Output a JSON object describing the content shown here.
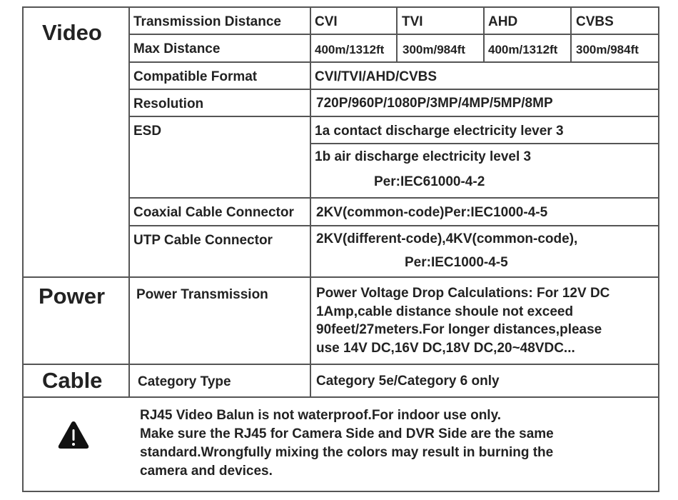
{
  "sections": {
    "video": "Video",
    "power": "Power",
    "cable": "Cable"
  },
  "video": {
    "transmission_distance": {
      "label": "Transmission Distance",
      "formats": [
        "CVI",
        "TVI",
        "AHD",
        "CVBS"
      ]
    },
    "max_distance": {
      "label": "Max Distance",
      "values": [
        "400m/1312ft",
        "300m/984ft",
        "400m/1312ft",
        "300m/984ft"
      ]
    },
    "compatible_format": {
      "label": "Compatible Format",
      "value": "CVI/TVI/AHD/CVBS"
    },
    "resolution": {
      "label": "Resolution",
      "value": "720P/960P/1080P/3MP/4MP/5MP/8MP"
    },
    "esd": {
      "label": "ESD",
      "line1": "1a contact discharge electricity lever 3",
      "line2": "1b air discharge electricity level 3",
      "line3": "Per:IEC61000-4-2"
    },
    "coaxial": {
      "label": "Coaxial Cable Connector",
      "value": "2KV(common-code)Per:IEC1000-4-5"
    },
    "utp": {
      "label": "UTP Cable Connector",
      "line1": "2KV(different-code),4KV(common-code),",
      "line2": "Per:IEC1000-4-5"
    }
  },
  "power": {
    "label": "Power Transmission",
    "lines": [
      "Power Voltage Drop Calculations: For 12V DC",
      "1Amp,cable distance shoule not exceed",
      "90feet/27meters.For longer distances,please",
      "use 14V DC,16V DC,18V DC,20~48VDC..."
    ]
  },
  "cable": {
    "label": "Category Type",
    "value": "Category 5e/Category 6 only"
  },
  "warning": {
    "icon": "warning-triangle-icon",
    "lines": [
      "RJ45 Video Balun is not waterproof.For indoor use only.",
      "Make sure the RJ45 for Camera Side and DVR Side are the same",
      "standard.Wrongfully mixing the colors may result in burning the",
      "camera and devices."
    ]
  }
}
